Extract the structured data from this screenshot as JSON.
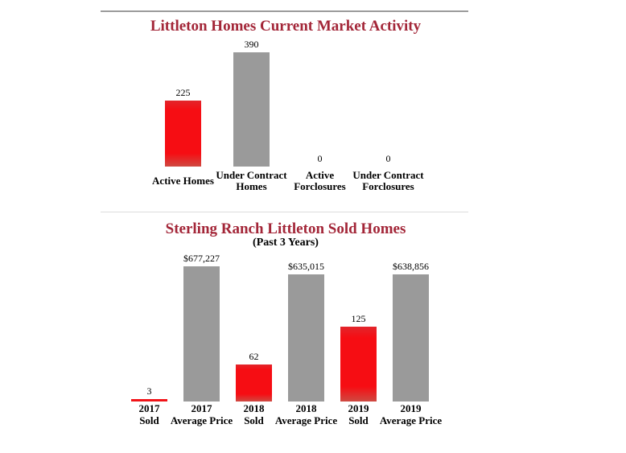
{
  "colors": {
    "title_red": "#a32638",
    "bar_red": "#ee1b22",
    "bar_gray": "#9a9a9a"
  },
  "chart_data": [
    {
      "type": "bar",
      "title": "Littleton Homes Current Market Activity",
      "categories": [
        "Active Homes",
        "Under Contract Homes",
        "Active Forclosures",
        "Under Contract Forclosures"
      ],
      "values": [
        225,
        390,
        0,
        0
      ],
      "value_labels": [
        "225",
        "390",
        "0",
        "0"
      ],
      "label_lines": [
        [
          "Active Homes"
        ],
        [
          "Under Contract",
          "Homes"
        ],
        [
          "Active",
          "Forclosures"
        ],
        [
          "Under Contract",
          "Forclosures"
        ]
      ],
      "bar_colors": [
        "#ee1b22",
        "#9a9a9a",
        "#ee1b22",
        "#9a9a9a"
      ],
      "ylim": [
        0,
        390
      ],
      "grid": false,
      "legend": "none",
      "value_label_position": "above"
    },
    {
      "type": "bar",
      "title": "Sterling Ranch Littleton Sold Homes",
      "subtitle": "(Past 3 Years)",
      "categories": [
        "2017 Sold",
        "2017 Average Price",
        "2018 Sold",
        "2018 Average Price",
        "2019 Sold",
        "2019 Average Price"
      ],
      "values": [
        3,
        677227,
        62,
        635015,
        125,
        638856
      ],
      "value_labels": [
        "3",
        "$677,227",
        "62",
        "$635,015",
        "125",
        "$638,856"
      ],
      "label_lines": [
        [
          "2017",
          "Sold"
        ],
        [
          "2017",
          "Average Price"
        ],
        [
          "2018",
          "Sold"
        ],
        [
          "2018",
          "Average Price"
        ],
        [
          "2019",
          "Sold"
        ],
        [
          "2019",
          "Average Price"
        ]
      ],
      "bar_colors": [
        "#ee1b22",
        "#9a9a9a",
        "#ee1b22",
        "#9a9a9a",
        "#ee1b22",
        "#9a9a9a"
      ],
      "series_axis": [
        "sold",
        "price",
        "sold",
        "price",
        "sold",
        "price"
      ],
      "axes": {
        "sold": {
          "max": 125
        },
        "price": {
          "max": 677227
        }
      },
      "grid": false,
      "legend": "none",
      "value_label_position": "above"
    }
  ]
}
